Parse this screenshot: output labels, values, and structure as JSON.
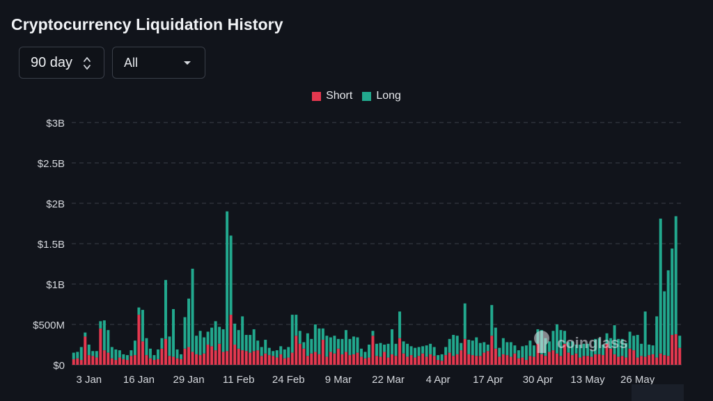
{
  "page": {
    "title": "Cryptocurrency Liquidation History"
  },
  "controls": {
    "range_value": "90 day",
    "filter_value": "All"
  },
  "watermark": "coinglass",
  "chart_data": {
    "type": "bar",
    "stacked": true,
    "title": "Cryptocurrency Liquidation History",
    "y_ticks": [
      "$0",
      "$500M",
      "$1B",
      "$1.5B",
      "$2B",
      "$2.5B",
      "$3B"
    ],
    "y_tick_values": [
      0,
      500,
      1000,
      1500,
      2000,
      2500,
      3000
    ],
    "ylim": [
      0,
      3000
    ],
    "y_unit": "USD millions",
    "x_tick_labels": [
      "3 Jan",
      "16 Jan",
      "29 Jan",
      "11 Feb",
      "24 Feb",
      "9 Mar",
      "22 Mar",
      "4 Apr",
      "17 Apr",
      "30 Apr",
      "13 May",
      "26 May"
    ],
    "x_tick_indices": [
      4,
      17,
      30,
      43,
      56,
      69,
      82,
      95,
      108,
      121,
      134,
      147
    ],
    "grid": true,
    "legend_position": "top-center",
    "colors": {
      "short": "#e5384f",
      "long": "#22a98e",
      "grid": "#3a3f49",
      "text": "#d6d9de"
    },
    "series": [
      {
        "name": "Short",
        "values": [
          70,
          80,
          60,
          350,
          120,
          110,
          90,
          450,
          180,
          150,
          80,
          60,
          90,
          70,
          60,
          110,
          120,
          620,
          290,
          120,
          80,
          60,
          70,
          200,
          320,
          110,
          100,
          80,
          70,
          200,
          220,
          160,
          130,
          120,
          140,
          250,
          230,
          180,
          260,
          160,
          170,
          620,
          250,
          200,
          180,
          170,
          150,
          170,
          180,
          110,
          140,
          120,
          110,
          90,
          130,
          80,
          90,
          150,
          360,
          260,
          200,
          110,
          140,
          160,
          130,
          310,
          100,
          160,
          140,
          200,
          130,
          160,
          120,
          130,
          150,
          100,
          80,
          90,
          360,
          110,
          100,
          160,
          90,
          130,
          110,
          330,
          140,
          100,
          120,
          90,
          110,
          140,
          100,
          130,
          110,
          60,
          50,
          120,
          150,
          110,
          130,
          180,
          320,
          130,
          120,
          110,
          110,
          150,
          170,
          360,
          200,
          100,
          130,
          120,
          100,
          140,
          80,
          90,
          60,
          110,
          100,
          260,
          130,
          110,
          160,
          180,
          140,
          110,
          260,
          150,
          120,
          140,
          90,
          110,
          110,
          100,
          130,
          130,
          120,
          260,
          200,
          130,
          100,
          110,
          90,
          200,
          180,
          90,
          110,
          100,
          120,
          130,
          90,
          140,
          120,
          110,
          370,
          380,
          210
        ]
      },
      {
        "name": "Long",
        "values": [
          80,
          80,
          160,
          50,
          130,
          60,
          80,
          90,
          370,
          280,
          140,
          130,
          90,
          60,
          60,
          70,
          180,
          90,
          390,
          210,
          120,
          60,
          120,
          130,
          730,
          240,
          590,
          110,
          60,
          390,
          600,
          1030,
          230,
          300,
          200,
          160,
          230,
          360,
          210,
          280,
          1730,
          980,
          260,
          230,
          420,
          200,
          220,
          270,
          120,
          110,
          170,
          90,
          60,
          90,
          100,
          110,
          130,
          470,
          260,
          160,
          80,
          280,
          180,
          340,
          320,
          140,
          260,
          180,
          220,
          120,
          190,
          270,
          200,
          220,
          190,
          100,
          80,
          160,
          60,
          150,
          170,
          90,
          170,
          310,
          150,
          330,
          150,
          160,
          110,
          120,
          110,
          90,
          140,
          130,
          110,
          60,
          80,
          100,
          170,
          260,
          230,
          90,
          440,
          180,
          180,
          230,
          160,
          130,
          80,
          380,
          260,
          110,
          200,
          160,
          180,
          100,
          100,
          140,
          180,
          190,
          140,
          180,
          300,
          220,
          130,
          240,
          360,
          320,
          160,
          130,
          170,
          110,
          160,
          150,
          150,
          80,
          190,
          200,
          130,
          130,
          130,
          360,
          220,
          210,
          180,
          210,
          180,
          280,
          150,
          560,
          130,
          110,
          510,
          1670,
          790,
          1060,
          1070,
          1460,
          150
        ]
      }
    ]
  }
}
